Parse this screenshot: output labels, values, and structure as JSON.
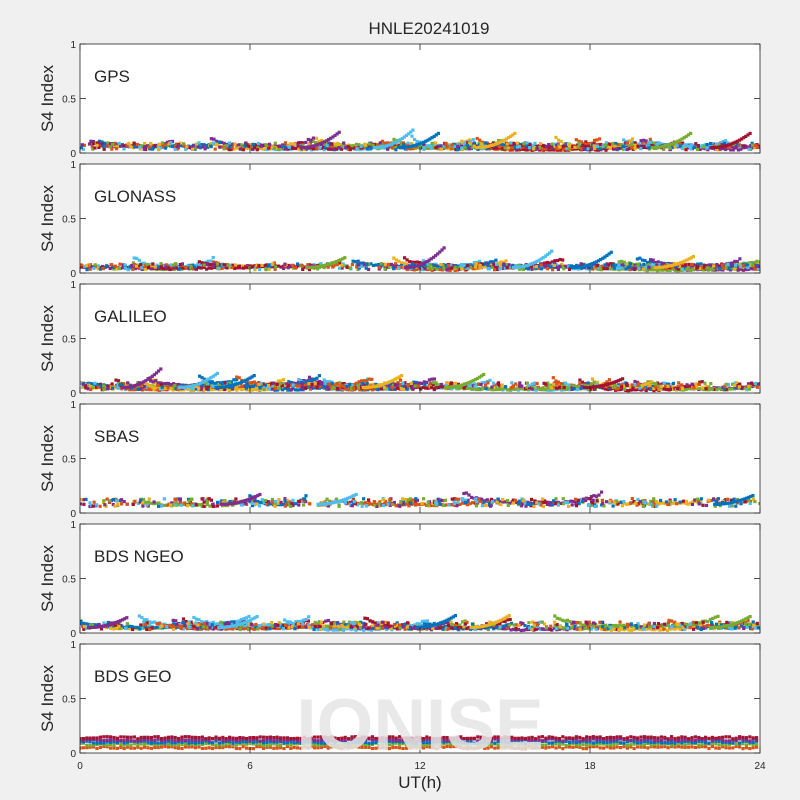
{
  "figure": {
    "title": "HNLE20241019",
    "xlabel": "UT(h)",
    "watermark": "IONISE"
  },
  "colors": {
    "series": [
      "#0072bd",
      "#d95319",
      "#edb120",
      "#7e2f8e",
      "#77ac30",
      "#4dbeee",
      "#a2142f"
    ],
    "axis": "#262626",
    "background": "#f0f0f0",
    "plot_background": "#ffffff",
    "watermark": "#e6e6e6"
  },
  "chart_data": [
    {
      "type": "scatter",
      "label": "GPS",
      "ylabel": "S4 Index",
      "xlim": [
        0,
        24
      ],
      "ylim": [
        0,
        1
      ],
      "xticks": [
        "0",
        "6",
        "12",
        "18",
        "24"
      ],
      "yticks": [
        "0",
        "0.5",
        "1"
      ],
      "grid": false,
      "series_count": 28,
      "baseline": [
        0.03,
        0.11
      ],
      "peaks": [
        {
          "x": 9.0,
          "y": 0.19
        },
        {
          "x": 11.6,
          "y": 0.21
        },
        {
          "x": 12.5,
          "y": 0.18
        },
        {
          "x": 15.2,
          "y": 0.18
        },
        {
          "x": 21.4,
          "y": 0.18
        },
        {
          "x": 23.5,
          "y": 0.18
        }
      ]
    },
    {
      "type": "scatter",
      "label": "GLONASS",
      "ylabel": "S4 Index",
      "xlim": [
        0,
        24
      ],
      "ylim": [
        0,
        1
      ],
      "xticks": [
        "0",
        "6",
        "12",
        "18",
        "24"
      ],
      "yticks": [
        "0",
        "0.5",
        "1"
      ],
      "grid": false,
      "series_count": 22,
      "baseline": [
        0.03,
        0.1
      ],
      "peaks": [
        {
          "x": 12.7,
          "y": 0.23
        },
        {
          "x": 16.5,
          "y": 0.2
        },
        {
          "x": 18.6,
          "y": 0.19
        },
        {
          "x": 21.5,
          "y": 0.15
        },
        {
          "x": 9.2,
          "y": 0.14
        }
      ]
    },
    {
      "type": "scatter",
      "label": "GALILEO",
      "ylabel": "S4 Index",
      "xlim": [
        0,
        24
      ],
      "ylim": [
        0,
        1
      ],
      "xticks": [
        "0",
        "6",
        "12",
        "18",
        "24"
      ],
      "yticks": [
        "0",
        "0.5",
        "1"
      ],
      "grid": false,
      "series_count": 24,
      "baseline": [
        0.03,
        0.11
      ],
      "peaks": [
        {
          "x": 2.7,
          "y": 0.22
        },
        {
          "x": 4.7,
          "y": 0.18
        },
        {
          "x": 6.0,
          "y": 0.16
        },
        {
          "x": 11.2,
          "y": 0.16
        },
        {
          "x": 14.1,
          "y": 0.17
        },
        {
          "x": 19.0,
          "y": 0.13
        }
      ]
    },
    {
      "type": "scatter",
      "label": "SBAS",
      "ylabel": "S4 Index",
      "xlim": [
        0,
        24
      ],
      "ylim": [
        0,
        1
      ],
      "xticks": [
        "0",
        "6",
        "12",
        "18",
        "24"
      ],
      "yticks": [
        "0",
        "0.5",
        "1"
      ],
      "grid": false,
      "series_count": 5,
      "baseline": [
        0.06,
        0.15
      ],
      "peaks": [
        {
          "x": 6.2,
          "y": 0.17
        },
        {
          "x": 9.6,
          "y": 0.17
        },
        {
          "x": 23.6,
          "y": 0.16
        }
      ]
    },
    {
      "type": "scatter",
      "label": "BDS NGEO",
      "ylabel": "S4 Index",
      "xlim": [
        0,
        24
      ],
      "ylim": [
        0,
        1
      ],
      "xticks": [
        "0",
        "6",
        "12",
        "18",
        "24"
      ],
      "yticks": [
        "0",
        "0.5",
        "1"
      ],
      "grid": false,
      "series_count": 20,
      "baseline": [
        0.03,
        0.12
      ],
      "peaks": [
        {
          "x": 1.5,
          "y": 0.14
        },
        {
          "x": 6.1,
          "y": 0.15
        },
        {
          "x": 13.1,
          "y": 0.16
        },
        {
          "x": 15.0,
          "y": 0.16
        },
        {
          "x": 23.5,
          "y": 0.15
        }
      ]
    },
    {
      "type": "scatter",
      "label": "BDS GEO",
      "ylabel": "S4 Index",
      "xlim": [
        0,
        24
      ],
      "ylim": [
        0,
        1
      ],
      "xticks": [
        "0",
        "6",
        "12",
        "18",
        "24"
      ],
      "yticks": [
        "0",
        "0.5",
        "1"
      ],
      "grid": false,
      "series_count": 5,
      "levels": [
        0.05,
        0.08,
        0.1,
        0.12,
        0.14
      ]
    }
  ]
}
